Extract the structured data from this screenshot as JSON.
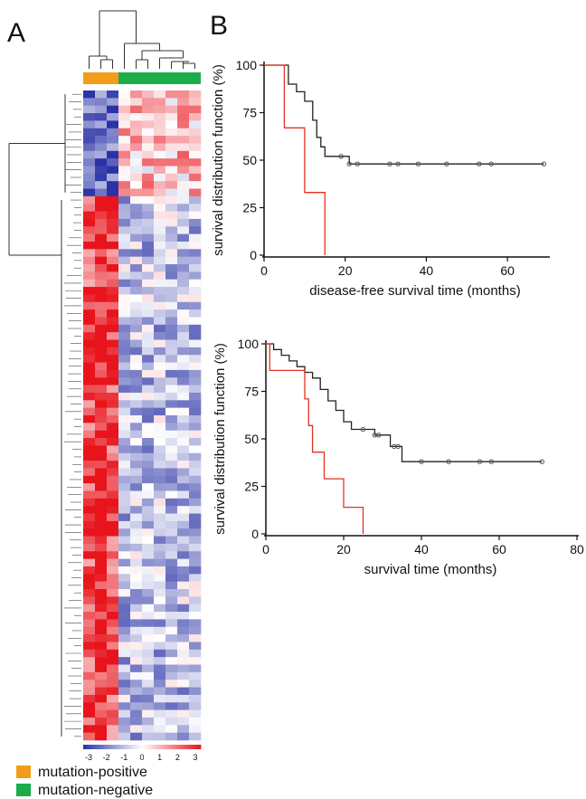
{
  "panels": {
    "a": "A",
    "b": "B"
  },
  "colors": {
    "mutation_positive": "#f39c1a",
    "mutation_negative": "#1aad4a",
    "high": "#e8141c",
    "low": "#2a33a6",
    "km_positive": "#e33322",
    "km_negative": "#222222"
  },
  "legend": {
    "positive": "mutation-positive",
    "negative": "mutation-negative",
    "scale_ticks": [
      "-3",
      "-2",
      "-1",
      "0",
      "1",
      "2",
      "3"
    ]
  },
  "chart_data": [
    {
      "type": "heatmap",
      "columns_positive": 3,
      "columns_negative": 7,
      "row_clusters": 2,
      "rows_upper_cluster": 14,
      "rows_lower_cluster": 72,
      "color_range": [
        -3,
        3
      ]
    },
    {
      "type": "line",
      "step": true,
      "xlabel": "disease-free survival time (months)",
      "ylabel": "survival distribution function (%)",
      "xlim": [
        0,
        70
      ],
      "ylim": [
        0,
        100
      ],
      "xticks": [
        "0",
        "20",
        "40",
        "60"
      ],
      "yticks": [
        "0",
        "25",
        "50",
        "75",
        "100"
      ],
      "series": [
        {
          "color": "#222222",
          "values": [
            [
              0,
              100
            ],
            [
              2,
              100
            ],
            [
              4,
              100
            ],
            [
              6,
              95
            ],
            [
              6,
              90
            ],
            [
              8,
              86
            ],
            [
              10,
              81
            ],
            [
              12,
              71
            ],
            [
              13,
              62
            ],
            [
              14,
              57
            ],
            [
              15,
              52
            ],
            [
              19,
              52
            ],
            [
              21,
              48
            ],
            [
              23,
              48
            ],
            [
              31,
              48
            ],
            [
              33,
              48
            ],
            [
              38,
              48
            ],
            [
              45,
              48
            ],
            [
              53,
              48
            ],
            [
              56,
              48
            ],
            [
              69,
              48
            ]
          ],
          "censored": [
            [
              19,
              52
            ],
            [
              21,
              48
            ],
            [
              23,
              48
            ],
            [
              31,
              48
            ],
            [
              33,
              48
            ],
            [
              38,
              48
            ],
            [
              45,
              48
            ],
            [
              53,
              48
            ],
            [
              56,
              48
            ],
            [
              69,
              48
            ]
          ]
        },
        {
          "color": "#e33322",
          "values": [
            [
              0,
              100
            ],
            [
              5,
              100
            ],
            [
              5,
              67
            ],
            [
              10,
              67
            ],
            [
              10,
              33
            ],
            [
              15,
              33
            ],
            [
              15,
              0
            ]
          ],
          "censored": []
        }
      ]
    },
    {
      "type": "line",
      "step": true,
      "xlabel": "survival time (months)",
      "ylabel": "survival distribution function (%)",
      "xlim": [
        0,
        80
      ],
      "ylim": [
        0,
        100
      ],
      "xticks": [
        "0",
        "20",
        "40",
        "60",
        "80"
      ],
      "yticks": [
        "0",
        "25",
        "50",
        "75",
        "100"
      ],
      "series": [
        {
          "color": "#222222",
          "values": [
            [
              0,
              100
            ],
            [
              2,
              97
            ],
            [
              4,
              94
            ],
            [
              6,
              91
            ],
            [
              8,
              88
            ],
            [
              10,
              85
            ],
            [
              12,
              82
            ],
            [
              14,
              76
            ],
            [
              16,
              70
            ],
            [
              18,
              65
            ],
            [
              20,
              59
            ],
            [
              22,
              55
            ],
            [
              26,
              55
            ],
            [
              28,
              52
            ],
            [
              29,
              52
            ],
            [
              31,
              52
            ],
            [
              32,
              46
            ],
            [
              34,
              46
            ],
            [
              35,
              38
            ],
            [
              40,
              38
            ],
            [
              47,
              38
            ],
            [
              55,
              38
            ],
            [
              58,
              38
            ],
            [
              71,
              38
            ]
          ],
          "censored": [
            [
              25,
              55
            ],
            [
              28,
              52
            ],
            [
              29,
              52
            ],
            [
              33,
              46
            ],
            [
              34,
              46
            ],
            [
              40,
              38
            ],
            [
              47,
              38
            ],
            [
              55,
              38
            ],
            [
              58,
              38
            ],
            [
              71,
              38
            ]
          ]
        },
        {
          "color": "#e33322",
          "values": [
            [
              0,
              100
            ],
            [
              1,
              86
            ],
            [
              8,
              86
            ],
            [
              10,
              71
            ],
            [
              11,
              57
            ],
            [
              12,
              43
            ],
            [
              15,
              43
            ],
            [
              15,
              29
            ],
            [
              20,
              29
            ],
            [
              20,
              14
            ],
            [
              25,
              14
            ],
            [
              25,
              0
            ]
          ],
          "censored": []
        }
      ]
    }
  ]
}
